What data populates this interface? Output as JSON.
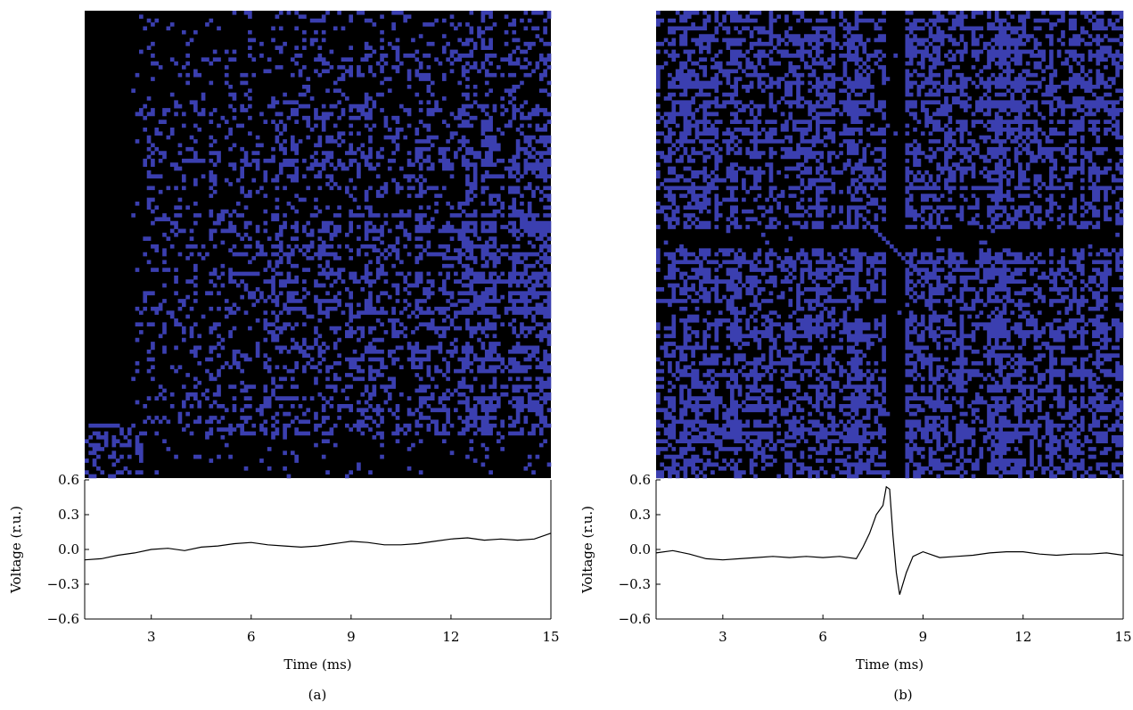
{
  "chart_data": [
    {
      "type": "line",
      "panel_label": "(a)",
      "xlabel": "Time (ms)",
      "ylabel": "Voltage (r.u.)",
      "xlim": [
        1,
        15
      ],
      "ylim": [
        -0.6,
        0.6
      ],
      "xticks": [
        "3",
        "6",
        "9",
        "12",
        "15"
      ],
      "yticks": [
        "0.6",
        "0.3",
        "0.0",
        "−0.3",
        "−0.6"
      ],
      "recurrence_plot_colors": {
        "background": "#000000",
        "points": "#3b3fb0"
      },
      "series": [
        {
          "x": [
            1.0,
            1.5,
            2.0,
            2.5,
            3.0,
            3.5,
            4.0,
            4.5,
            5.0,
            5.5,
            6.0,
            6.5,
            7.0,
            7.5,
            8.0,
            8.5,
            9.0,
            9.5,
            10.0,
            10.5,
            11.0,
            11.5,
            12.0,
            12.5,
            13.0,
            13.5,
            14.0,
            14.5,
            15.0
          ],
          "y": [
            -0.09,
            -0.08,
            -0.05,
            -0.03,
            0.0,
            0.01,
            -0.01,
            0.02,
            0.03,
            0.05,
            0.06,
            0.04,
            0.03,
            0.02,
            0.03,
            0.05,
            0.07,
            0.06,
            0.04,
            0.04,
            0.05,
            0.07,
            0.09,
            0.1,
            0.08,
            0.09,
            0.08,
            0.09,
            0.14
          ]
        }
      ]
    },
    {
      "type": "line",
      "panel_label": "(b)",
      "xlabel": "Time (ms)",
      "ylabel": "Voltage (r.u.)",
      "xlim": [
        1,
        15
      ],
      "ylim": [
        -0.6,
        0.6
      ],
      "xticks": [
        "3",
        "6",
        "9",
        "12",
        "15"
      ],
      "yticks": [
        "0.6",
        "0.3",
        "0.0",
        "−0.3",
        "−0.6"
      ],
      "recurrence_plot_colors": {
        "background": "#000000",
        "points": "#3b3fb0"
      },
      "series": [
        {
          "x": [
            1.0,
            1.5,
            2.0,
            2.5,
            3.0,
            3.5,
            4.0,
            4.5,
            5.0,
            5.5,
            6.0,
            6.5,
            7.0,
            7.2,
            7.4,
            7.6,
            7.8,
            7.9,
            8.0,
            8.1,
            8.2,
            8.3,
            8.5,
            8.7,
            9.0,
            9.5,
            10.0,
            10.5,
            11.0,
            11.5,
            12.0,
            12.5,
            13.0,
            13.5,
            14.0,
            14.5,
            15.0
          ],
          "y": [
            -0.03,
            -0.01,
            -0.04,
            -0.08,
            -0.09,
            -0.08,
            -0.07,
            -0.06,
            -0.07,
            -0.06,
            -0.07,
            -0.06,
            -0.08,
            0.02,
            0.14,
            0.3,
            0.38,
            0.54,
            0.52,
            0.12,
            -0.2,
            -0.39,
            -0.2,
            -0.06,
            -0.02,
            -0.07,
            -0.06,
            -0.05,
            -0.03,
            -0.02,
            -0.02,
            -0.04,
            -0.05,
            -0.04,
            -0.04,
            -0.03,
            -0.05
          ]
        }
      ]
    }
  ]
}
